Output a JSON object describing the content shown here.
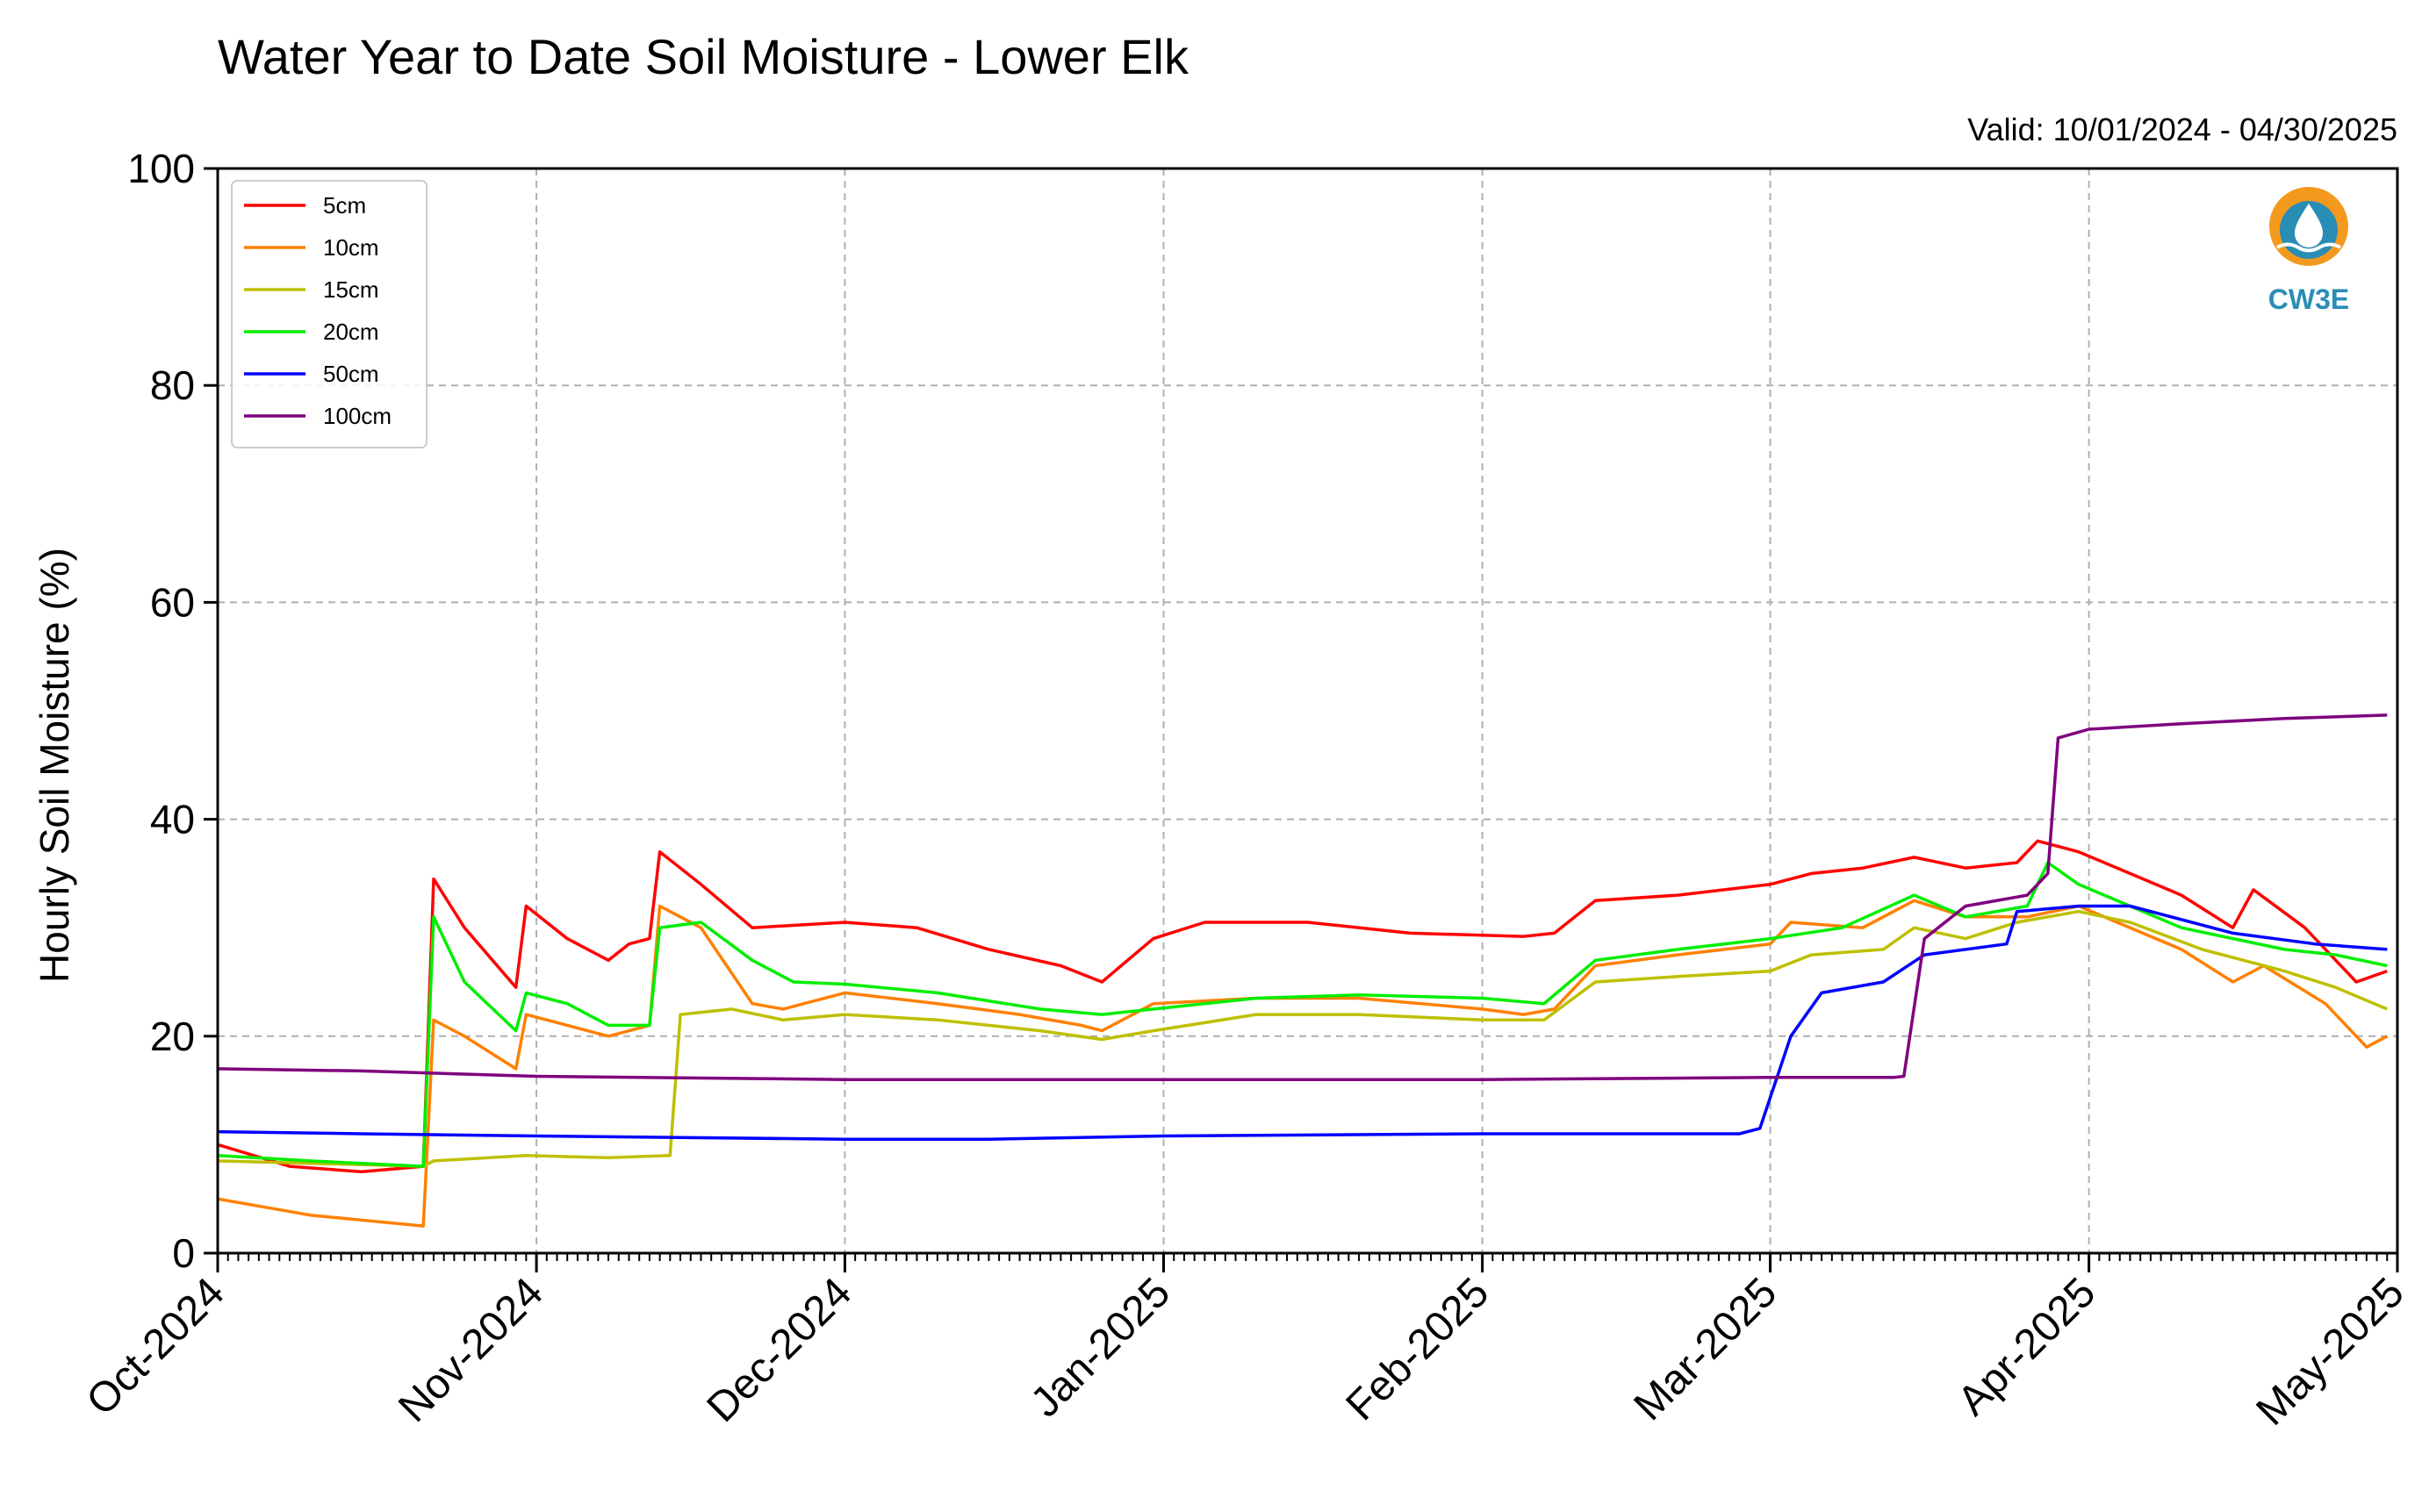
{
  "chart_data": {
    "type": "line",
    "title": "Water Year to Date Soil Moisture - Lower Elk",
    "subtitle": "Valid: 10/01/2024 - 04/30/2025",
    "ylabel": "Hourly Soil Moisture (%)",
    "xlabel": "",
    "ylim": [
      0,
      100
    ],
    "xlim": [
      "2024-10-01",
      "2025-05-01"
    ],
    "yticks": [
      "0",
      "20",
      "40",
      "60",
      "80",
      "100"
    ],
    "xticks": [
      {
        "label": "Oct-2024",
        "date": "2024-10-01"
      },
      {
        "label": "Nov-2024",
        "date": "2024-11-01"
      },
      {
        "label": "Dec-2024",
        "date": "2024-12-01"
      },
      {
        "label": "Jan-2025",
        "date": "2025-01-01"
      },
      {
        "label": "Feb-2025",
        "date": "2025-02-01"
      },
      {
        "label": "Mar-2025",
        "date": "2025-03-01"
      },
      {
        "label": "Apr-2025",
        "date": "2025-04-01"
      },
      {
        "label": "May-2025",
        "date": "2025-05-01"
      }
    ],
    "grid": true,
    "legend_position": "top-left",
    "logo_text": "CW3E",
    "series": [
      {
        "name": "5cm",
        "color": "#ff0000",
        "points": [
          [
            "2024-10-01",
            10
          ],
          [
            "2024-10-08",
            8
          ],
          [
            "2024-10-15",
            7.5
          ],
          [
            "2024-10-21",
            8
          ],
          [
            "2024-10-22",
            34.5
          ],
          [
            "2024-10-25",
            30
          ],
          [
            "2024-10-30",
            24.5
          ],
          [
            "2024-10-31",
            32
          ],
          [
            "2024-11-04",
            29
          ],
          [
            "2024-11-08",
            27
          ],
          [
            "2024-11-10",
            28.5
          ],
          [
            "2024-11-12",
            29
          ],
          [
            "2024-11-13",
            37
          ],
          [
            "2024-11-17",
            34
          ],
          [
            "2024-11-22",
            30
          ],
          [
            "2024-12-01",
            30.5
          ],
          [
            "2024-12-08",
            30
          ],
          [
            "2024-12-15",
            28
          ],
          [
            "2024-12-22",
            26.5
          ],
          [
            "2024-12-26",
            25
          ],
          [
            "2024-12-31",
            29
          ],
          [
            "2025-01-05",
            30.5
          ],
          [
            "2025-01-15",
            30.5
          ],
          [
            "2025-01-25",
            29.5
          ],
          [
            "2025-02-05",
            29.2
          ],
          [
            "2025-02-08",
            29.5
          ],
          [
            "2025-02-12",
            32.5
          ],
          [
            "2025-02-20",
            33
          ],
          [
            "2025-03-01",
            34
          ],
          [
            "2025-03-05",
            35
          ],
          [
            "2025-03-10",
            35.5
          ],
          [
            "2025-03-15",
            36.5
          ],
          [
            "2025-03-20",
            35.5
          ],
          [
            "2025-03-25",
            36
          ],
          [
            "2025-03-27",
            38
          ],
          [
            "2025-03-31",
            37
          ],
          [
            "2025-04-05",
            35
          ],
          [
            "2025-04-10",
            33
          ],
          [
            "2025-04-15",
            30
          ],
          [
            "2025-04-17",
            33.5
          ],
          [
            "2025-04-22",
            30
          ],
          [
            "2025-04-27",
            25
          ],
          [
            "2025-04-30",
            26
          ]
        ]
      },
      {
        "name": "10cm",
        "color": "#ff8000",
        "points": [
          [
            "2024-10-01",
            5
          ],
          [
            "2024-10-10",
            3.5
          ],
          [
            "2024-10-21",
            2.5
          ],
          [
            "2024-10-22",
            21.5
          ],
          [
            "2024-10-25",
            20
          ],
          [
            "2024-10-30",
            17
          ],
          [
            "2024-10-31",
            22
          ],
          [
            "2024-11-04",
            21
          ],
          [
            "2024-11-08",
            20
          ],
          [
            "2024-11-12",
            21
          ],
          [
            "2024-11-13",
            32
          ],
          [
            "2024-11-17",
            30
          ],
          [
            "2024-11-22",
            23
          ],
          [
            "2024-11-25",
            22.5
          ],
          [
            "2024-12-01",
            24
          ],
          [
            "2024-12-10",
            23
          ],
          [
            "2024-12-18",
            22
          ],
          [
            "2024-12-24",
            21
          ],
          [
            "2024-12-26",
            20.5
          ],
          [
            "2024-12-31",
            23
          ],
          [
            "2025-01-10",
            23.5
          ],
          [
            "2025-01-20",
            23.5
          ],
          [
            "2025-02-01",
            22.5
          ],
          [
            "2025-02-05",
            22
          ],
          [
            "2025-02-08",
            22.5
          ],
          [
            "2025-02-12",
            26.5
          ],
          [
            "2025-02-20",
            27.5
          ],
          [
            "2025-03-01",
            28.5
          ],
          [
            "2025-03-03",
            30.5
          ],
          [
            "2025-03-10",
            30
          ],
          [
            "2025-03-15",
            32.5
          ],
          [
            "2025-03-20",
            31
          ],
          [
            "2025-03-26",
            31
          ],
          [
            "2025-03-31",
            32
          ],
          [
            "2025-04-05",
            30
          ],
          [
            "2025-04-10",
            28
          ],
          [
            "2025-04-15",
            25
          ],
          [
            "2025-04-18",
            26.5
          ],
          [
            "2025-04-24",
            23
          ],
          [
            "2025-04-28",
            19
          ],
          [
            "2025-04-30",
            20
          ]
        ]
      },
      {
        "name": "15cm",
        "color": "#bfbf00",
        "points": [
          [
            "2024-10-01",
            8.5
          ],
          [
            "2024-10-21",
            8
          ],
          [
            "2024-10-22",
            8.5
          ],
          [
            "2024-10-31",
            9
          ],
          [
            "2024-11-08",
            8.8
          ],
          [
            "2024-11-14",
            9
          ],
          [
            "2024-11-15",
            22
          ],
          [
            "2024-11-20",
            22.5
          ],
          [
            "2024-11-25",
            21.5
          ],
          [
            "2024-12-01",
            22
          ],
          [
            "2024-12-10",
            21.5
          ],
          [
            "2024-12-20",
            20.5
          ],
          [
            "2024-12-26",
            19.7
          ],
          [
            "2024-12-31",
            20.5
          ],
          [
            "2025-01-10",
            22
          ],
          [
            "2025-01-20",
            22
          ],
          [
            "2025-02-01",
            21.5
          ],
          [
            "2025-02-07",
            21.5
          ],
          [
            "2025-02-12",
            25
          ],
          [
            "2025-02-20",
            25.5
          ],
          [
            "2025-03-01",
            26
          ],
          [
            "2025-03-05",
            27.5
          ],
          [
            "2025-03-12",
            28
          ],
          [
            "2025-03-15",
            30
          ],
          [
            "2025-03-20",
            29
          ],
          [
            "2025-03-25",
            30.5
          ],
          [
            "2025-03-31",
            31.5
          ],
          [
            "2025-04-05",
            30.5
          ],
          [
            "2025-04-12",
            28
          ],
          [
            "2025-04-20",
            26
          ],
          [
            "2025-04-25",
            24.5
          ],
          [
            "2025-04-30",
            22.5
          ]
        ]
      },
      {
        "name": "20cm",
        "color": "#00ee00",
        "points": [
          [
            "2024-10-01",
            9
          ],
          [
            "2024-10-10",
            8.5
          ],
          [
            "2024-10-21",
            8
          ],
          [
            "2024-10-22",
            31
          ],
          [
            "2024-10-25",
            25
          ],
          [
            "2024-10-30",
            20.5
          ],
          [
            "2024-10-31",
            24
          ],
          [
            "2024-11-04",
            23
          ],
          [
            "2024-11-08",
            21
          ],
          [
            "2024-11-12",
            21
          ],
          [
            "2024-11-13",
            30
          ],
          [
            "2024-11-17",
            30.5
          ],
          [
            "2024-11-22",
            27
          ],
          [
            "2024-11-26",
            25
          ],
          [
            "2024-12-01",
            24.8
          ],
          [
            "2024-12-10",
            24
          ],
          [
            "2024-12-20",
            22.5
          ],
          [
            "2024-12-26",
            22
          ],
          [
            "2024-12-31",
            22.5
          ],
          [
            "2025-01-10",
            23.5
          ],
          [
            "2025-01-20",
            23.8
          ],
          [
            "2025-02-01",
            23.5
          ],
          [
            "2025-02-07",
            23
          ],
          [
            "2025-02-12",
            27
          ],
          [
            "2025-02-20",
            28
          ],
          [
            "2025-03-01",
            29
          ],
          [
            "2025-03-08",
            30
          ],
          [
            "2025-03-15",
            33
          ],
          [
            "2025-03-20",
            31
          ],
          [
            "2025-03-26",
            32
          ],
          [
            "2025-03-28",
            36
          ],
          [
            "2025-03-31",
            34
          ],
          [
            "2025-04-05",
            32
          ],
          [
            "2025-04-10",
            30
          ],
          [
            "2025-04-15",
            29
          ],
          [
            "2025-04-20",
            28
          ],
          [
            "2025-04-25",
            27.5
          ],
          [
            "2025-04-30",
            26.5
          ]
        ]
      },
      {
        "name": "50cm",
        "color": "#0000ff",
        "points": [
          [
            "2024-10-01",
            11.2
          ],
          [
            "2024-10-15",
            11
          ],
          [
            "2024-11-01",
            10.8
          ],
          [
            "2024-12-01",
            10.5
          ],
          [
            "2024-12-15",
            10.5
          ],
          [
            "2025-01-01",
            10.8
          ],
          [
            "2025-02-01",
            11
          ],
          [
            "2025-02-26",
            11
          ],
          [
            "2025-02-28",
            11.5
          ],
          [
            "2025-03-03",
            20
          ],
          [
            "2025-03-06",
            24
          ],
          [
            "2025-03-12",
            25
          ],
          [
            "2025-03-16",
            27.5
          ],
          [
            "2025-03-24",
            28.5
          ],
          [
            "2025-03-25",
            31.5
          ],
          [
            "2025-03-31",
            32
          ],
          [
            "2025-04-05",
            32
          ],
          [
            "2025-04-15",
            29.5
          ],
          [
            "2025-04-23",
            28.5
          ],
          [
            "2025-04-30",
            28
          ]
        ]
      },
      {
        "name": "100cm",
        "color": "#7f007f",
        "points": [
          [
            "2024-10-01",
            17
          ],
          [
            "2024-10-15",
            16.8
          ],
          [
            "2024-11-01",
            16.3
          ],
          [
            "2024-12-01",
            16
          ],
          [
            "2025-01-01",
            16
          ],
          [
            "2025-02-01",
            16
          ],
          [
            "2025-03-01",
            16.2
          ],
          [
            "2025-03-13",
            16.2
          ],
          [
            "2025-03-14",
            16.3
          ],
          [
            "2025-03-16",
            29
          ],
          [
            "2025-03-20",
            32
          ],
          [
            "2025-03-26",
            33
          ],
          [
            "2025-03-28",
            35
          ],
          [
            "2025-03-29",
            47.5
          ],
          [
            "2025-04-01",
            48.3
          ],
          [
            "2025-04-10",
            48.8
          ],
          [
            "2025-04-20",
            49.3
          ],
          [
            "2025-04-30",
            49.6
          ]
        ]
      }
    ]
  },
  "colors": {
    "grid": "#b0b0b0",
    "logo_accent": "#f39a1e",
    "logo_primary": "#2a8db5"
  }
}
